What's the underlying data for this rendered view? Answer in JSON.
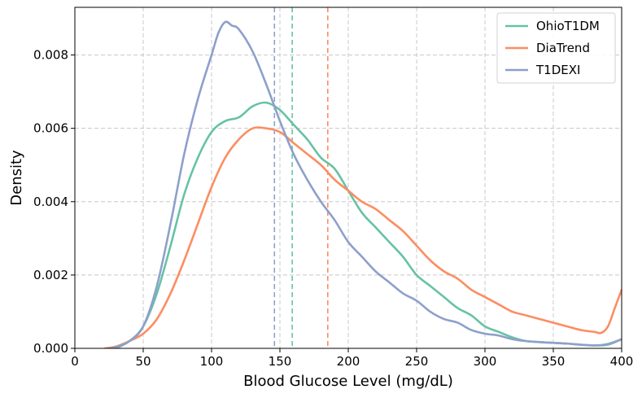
{
  "chart_data": {
    "type": "line",
    "title": "",
    "xlabel": "Blood Glucose Level (mg/dL)",
    "ylabel": "Density",
    "xlim": [
      0,
      400
    ],
    "ylim": [
      0,
      0.0093
    ],
    "xticks": [
      0,
      50,
      100,
      150,
      200,
      250,
      300,
      350,
      400
    ],
    "yticks": [
      0.0,
      0.002,
      0.004,
      0.006,
      0.008
    ],
    "xtick_labels": [
      "0",
      "50",
      "100",
      "150",
      "200",
      "250",
      "300",
      "350",
      "400"
    ],
    "ytick_labels": [
      "0.000",
      "0.002",
      "0.004",
      "0.006",
      "0.008"
    ],
    "grid": true,
    "legend_position": "top-right",
    "series": [
      {
        "name": "OhioT1DM",
        "color": "#66c2a5",
        "mean_line": 159,
        "points": [
          [
            30,
            0
          ],
          [
            40,
            0.0002
          ],
          [
            50,
            0.0006
          ],
          [
            60,
            0.0015
          ],
          [
            70,
            0.0028
          ],
          [
            80,
            0.0042
          ],
          [
            90,
            0.0052
          ],
          [
            100,
            0.0059
          ],
          [
            110,
            0.0062
          ],
          [
            120,
            0.0063
          ],
          [
            130,
            0.0066
          ],
          [
            140,
            0.0067
          ],
          [
            150,
            0.0065
          ],
          [
            160,
            0.0061
          ],
          [
            170,
            0.0057
          ],
          [
            180,
            0.0052
          ],
          [
            190,
            0.0049
          ],
          [
            200,
            0.0043
          ],
          [
            210,
            0.0037
          ],
          [
            220,
            0.0033
          ],
          [
            230,
            0.0029
          ],
          [
            240,
            0.0025
          ],
          [
            250,
            0.002
          ],
          [
            260,
            0.0017
          ],
          [
            270,
            0.0014
          ],
          [
            280,
            0.0011
          ],
          [
            290,
            0.0009
          ],
          [
            300,
            0.0006
          ],
          [
            310,
            0.00045
          ],
          [
            320,
            0.0003
          ],
          [
            330,
            0.0002
          ],
          [
            340,
            0.00017
          ],
          [
            350,
            0.00015
          ],
          [
            360,
            0.00013
          ],
          [
            370,
            0.0001
          ],
          [
            380,
            8e-05
          ],
          [
            390,
            0.0001
          ],
          [
            400,
            0.00025
          ]
        ]
      },
      {
        "name": "DiaTrend",
        "color": "#fc8d62",
        "mean_line": 185,
        "points": [
          [
            22,
            0
          ],
          [
            30,
            5e-05
          ],
          [
            40,
            0.0002
          ],
          [
            50,
            0.0004
          ],
          [
            60,
            0.0008
          ],
          [
            70,
            0.0015
          ],
          [
            80,
            0.0024
          ],
          [
            90,
            0.0034
          ],
          [
            100,
            0.0044
          ],
          [
            110,
            0.0052
          ],
          [
            120,
            0.0057
          ],
          [
            130,
            0.006
          ],
          [
            140,
            0.006
          ],
          [
            150,
            0.0059
          ],
          [
            160,
            0.0056
          ],
          [
            170,
            0.0053
          ],
          [
            180,
            0.005
          ],
          [
            190,
            0.0046
          ],
          [
            200,
            0.0043
          ],
          [
            210,
            0.004
          ],
          [
            220,
            0.0038
          ],
          [
            230,
            0.0035
          ],
          [
            240,
            0.0032
          ],
          [
            250,
            0.0028
          ],
          [
            260,
            0.0024
          ],
          [
            270,
            0.0021
          ],
          [
            280,
            0.0019
          ],
          [
            290,
            0.0016
          ],
          [
            300,
            0.0014
          ],
          [
            310,
            0.0012
          ],
          [
            320,
            0.001
          ],
          [
            330,
            0.0009
          ],
          [
            340,
            0.0008
          ],
          [
            350,
            0.0007
          ],
          [
            360,
            0.0006
          ],
          [
            370,
            0.0005
          ],
          [
            380,
            0.00045
          ],
          [
            385,
            0.00042
          ],
          [
            390,
            0.0006
          ],
          [
            395,
            0.0011
          ],
          [
            400,
            0.0016
          ]
        ]
      },
      {
        "name": "T1DEXI",
        "color": "#8da0cb",
        "mean_line": 146,
        "points": [
          [
            25,
            0
          ],
          [
            30,
            3e-05
          ],
          [
            40,
            0.0002
          ],
          [
            50,
            0.0006
          ],
          [
            60,
            0.0017
          ],
          [
            70,
            0.0034
          ],
          [
            80,
            0.0053
          ],
          [
            90,
            0.0068
          ],
          [
            100,
            0.008
          ],
          [
            105,
            0.0086
          ],
          [
            110,
            0.0089
          ],
          [
            115,
            0.0088
          ],
          [
            120,
            0.0087
          ],
          [
            130,
            0.0081
          ],
          [
            140,
            0.0072
          ],
          [
            150,
            0.0062
          ],
          [
            160,
            0.0053
          ],
          [
            170,
            0.0046
          ],
          [
            180,
            0.004
          ],
          [
            190,
            0.0035
          ],
          [
            200,
            0.0029
          ],
          [
            210,
            0.0025
          ],
          [
            220,
            0.0021
          ],
          [
            230,
            0.0018
          ],
          [
            240,
            0.0015
          ],
          [
            250,
            0.0013
          ],
          [
            260,
            0.001
          ],
          [
            270,
            0.0008
          ],
          [
            280,
            0.0007
          ],
          [
            290,
            0.0005
          ],
          [
            300,
            0.0004
          ],
          [
            310,
            0.00035
          ],
          [
            320,
            0.00025
          ],
          [
            330,
            0.0002
          ],
          [
            340,
            0.00017
          ],
          [
            350,
            0.00015
          ],
          [
            360,
            0.00013
          ],
          [
            370,
            0.0001
          ],
          [
            380,
            8e-05
          ],
          [
            390,
            0.00012
          ],
          [
            400,
            0.00025
          ]
        ]
      }
    ]
  }
}
